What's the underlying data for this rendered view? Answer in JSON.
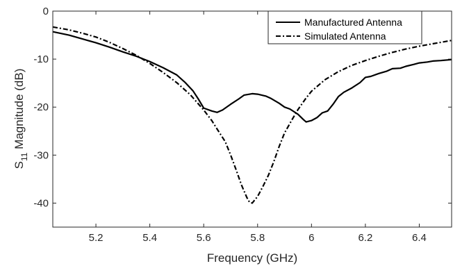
{
  "chart_data": {
    "type": "line",
    "title": "",
    "xlabel": "Frequency (GHz)",
    "ylabel": {
      "prefix": "S",
      "subscript": "11",
      "suffix": " Magnitude (dB)"
    },
    "xlim": [
      5.04,
      6.52
    ],
    "ylim": [
      -45,
      0
    ],
    "xticks": [
      5.2,
      5.4,
      5.6,
      5.8,
      6.0,
      6.2,
      6.4
    ],
    "xtick_labels": [
      "5.2",
      "5.4",
      "5.6",
      "5.8",
      "6",
      "6.2",
      "6.4"
    ],
    "yticks": [
      0,
      -10,
      -20,
      -30,
      -40
    ],
    "ytick_labels": [
      "0",
      "-10",
      "-20",
      "-30",
      "-40"
    ],
    "grid": false,
    "legend_position": "top-right",
    "series": [
      {
        "name": "Manufactured Antenna",
        "style": "solid",
        "color": "#000000",
        "x": [
          5.04,
          5.1,
          5.15,
          5.2,
          5.25,
          5.3,
          5.35,
          5.4,
          5.45,
          5.5,
          5.53,
          5.56,
          5.58,
          5.6,
          5.63,
          5.65,
          5.67,
          5.7,
          5.73,
          5.75,
          5.78,
          5.8,
          5.83,
          5.85,
          5.88,
          5.9,
          5.92,
          5.95,
          5.97,
          5.98,
          6.0,
          6.02,
          6.04,
          6.06,
          6.08,
          6.1,
          6.12,
          6.15,
          6.18,
          6.2,
          6.22,
          6.25,
          6.28,
          6.3,
          6.33,
          6.35,
          6.38,
          6.4,
          6.43,
          6.45,
          6.48,
          6.52
        ],
        "y": [
          -4.3,
          -5.0,
          -5.8,
          -6.6,
          -7.5,
          -8.5,
          -9.4,
          -10.5,
          -11.8,
          -13.3,
          -14.8,
          -16.6,
          -18.3,
          -20.2,
          -20.8,
          -21.1,
          -20.6,
          -19.4,
          -18.3,
          -17.5,
          -17.2,
          -17.3,
          -17.7,
          -18.2,
          -19.2,
          -20.0,
          -20.4,
          -21.5,
          -22.6,
          -23.1,
          -22.8,
          -22.2,
          -21.2,
          -20.8,
          -19.4,
          -17.8,
          -16.9,
          -16.0,
          -14.9,
          -13.8,
          -13.6,
          -13.0,
          -12.5,
          -12.0,
          -11.9,
          -11.5,
          -11.1,
          -10.8,
          -10.6,
          -10.4,
          -10.3,
          -10.1
        ]
      },
      {
        "name": "Simulated Antenna",
        "style": "dash-dot",
        "color": "#000000",
        "x": [
          5.04,
          5.1,
          5.15,
          5.2,
          5.25,
          5.3,
          5.35,
          5.4,
          5.45,
          5.5,
          5.55,
          5.6,
          5.63,
          5.65,
          5.68,
          5.7,
          5.72,
          5.74,
          5.76,
          5.77,
          5.78,
          5.8,
          5.82,
          5.84,
          5.86,
          5.88,
          5.9,
          5.93,
          5.95,
          5.98,
          6.0,
          6.05,
          6.1,
          6.15,
          6.2,
          6.25,
          6.3,
          6.35,
          6.4,
          6.45,
          6.52
        ],
        "y": [
          -3.3,
          -3.9,
          -4.6,
          -5.4,
          -6.5,
          -7.8,
          -9.2,
          -10.9,
          -12.8,
          -14.9,
          -17.4,
          -20.6,
          -22.8,
          -24.6,
          -27.2,
          -30.0,
          -33.0,
          -36.2,
          -38.8,
          -39.8,
          -40.0,
          -38.6,
          -36.5,
          -34.2,
          -31.4,
          -28.2,
          -25.4,
          -22.4,
          -20.5,
          -18.1,
          -16.7,
          -14.3,
          -12.6,
          -11.3,
          -10.3,
          -9.4,
          -8.6,
          -7.9,
          -7.3,
          -6.8,
          -6.1
        ]
      }
    ]
  }
}
